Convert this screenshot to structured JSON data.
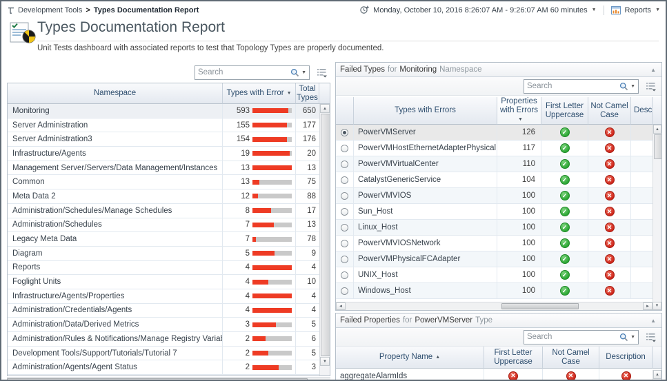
{
  "colors": {
    "bar_red": "#ee3b24",
    "bar_track": "#c9c9c9",
    "pass_green": "#2ea836",
    "fail_red": "#cf281c",
    "header_text": "#2f4f6f"
  },
  "icons": {
    "sort_desc": "▼",
    "sort_asc": "▲",
    "collapse": "▲",
    "dropdown": "▼",
    "pass": "✓",
    "fail": "✕",
    "scroll_up": "▲",
    "scroll_down": "▼",
    "scroll_left": "◄",
    "scroll_right": "►"
  },
  "topbar": {
    "breadcrumb": {
      "parent": "Development Tools",
      "separator": ">",
      "current": "Types Documentation Report"
    },
    "time_range": "Monday, October 10, 2016 8:26:07 AM - 9:26:07 AM 60 minutes",
    "reports_label": "Reports"
  },
  "header": {
    "title": "Types Documentation Report",
    "subtitle": "Unit Tests dashboard with associated reports to test that Topology Types are properly documented."
  },
  "namespace_table": {
    "search_placeholder": "Search",
    "columns": [
      "Namespace",
      "Types with Error",
      "Total Types"
    ],
    "sort": {
      "column": "Types with Error",
      "direction": "desc"
    },
    "rows": [
      {
        "namespace": "Monitoring",
        "errors": 593,
        "total": 650
      },
      {
        "namespace": "Server Administration",
        "errors": 155,
        "total": 177
      },
      {
        "namespace": "Server Administration3",
        "errors": 154,
        "total": 176
      },
      {
        "namespace": "Infrastructure/Agents",
        "errors": 19,
        "total": 20
      },
      {
        "namespace": "Management Server/Servers/Data Management/Instances",
        "errors": 13,
        "total": 13
      },
      {
        "namespace": "Common",
        "errors": 13,
        "total": 75
      },
      {
        "namespace": "Meta Data 2",
        "errors": 12,
        "total": 88
      },
      {
        "namespace": "Administration/Schedules/Manage Schedules",
        "errors": 8,
        "total": 17
      },
      {
        "namespace": "Administration/Schedules",
        "errors": 7,
        "total": 13
      },
      {
        "namespace": "Legacy Meta Data",
        "errors": 7,
        "total": 78
      },
      {
        "namespace": "Diagram",
        "errors": 5,
        "total": 9
      },
      {
        "namespace": "Reports",
        "errors": 4,
        "total": 4
      },
      {
        "namespace": "Foglight Units",
        "errors": 4,
        "total": 10
      },
      {
        "namespace": "Infrastructure/Agents/Properties",
        "errors": 4,
        "total": 4
      },
      {
        "namespace": "Administration/Credentials/Agents",
        "errors": 4,
        "total": 4
      },
      {
        "namespace": "Administration/Data/Derived Metrics",
        "errors": 3,
        "total": 5
      },
      {
        "namespace": "Administration/Rules & Notifications/Manage Registry Variables",
        "errors": 2,
        "total": 6
      },
      {
        "namespace": "Development Tools/Support/Tutorials/Tutorial 7",
        "errors": 2,
        "total": 5
      },
      {
        "namespace": "Administration/Agents/Agent Status",
        "errors": 2,
        "total": 3
      }
    ]
  },
  "failed_types_panel": {
    "title": {
      "prefix": "Failed Types",
      "for": "for",
      "value": "Monitoring",
      "suffix": "Namespace"
    },
    "search_placeholder": "Search",
    "columns": [
      "Types with Errors",
      "Properties with Errors",
      "First Letter Uppercase",
      "Not Camel Case",
      "Description"
    ],
    "sort": {
      "column": "Properties with Errors",
      "direction": "desc"
    },
    "rows": [
      {
        "type": "PowerVMServer",
        "properties_with_errors": 126,
        "first_letter_uppercase": "pass",
        "not_camel_case": "fail",
        "selected": true
      },
      {
        "type": "PowerVMHostEthernetAdapterPhysicalPort",
        "properties_with_errors": 117,
        "first_letter_uppercase": "pass",
        "not_camel_case": "fail",
        "selected": false
      },
      {
        "type": "PowerVMVirtualCenter",
        "properties_with_errors": 110,
        "first_letter_uppercase": "pass",
        "not_camel_case": "fail",
        "selected": false
      },
      {
        "type": "CatalystGenericService",
        "properties_with_errors": 104,
        "first_letter_uppercase": "pass",
        "not_camel_case": "fail",
        "selected": false
      },
      {
        "type": "PowerVMVIOS",
        "properties_with_errors": 100,
        "first_letter_uppercase": "pass",
        "not_camel_case": "fail",
        "selected": false
      },
      {
        "type": "Sun_Host",
        "properties_with_errors": 100,
        "first_letter_uppercase": "pass",
        "not_camel_case": "fail",
        "selected": false
      },
      {
        "type": "Linux_Host",
        "properties_with_errors": 100,
        "first_letter_uppercase": "pass",
        "not_camel_case": "fail",
        "selected": false
      },
      {
        "type": "PowerVMVIOSNetwork",
        "properties_with_errors": 100,
        "first_letter_uppercase": "pass",
        "not_camel_case": "fail",
        "selected": false
      },
      {
        "type": "PowerVMPhysicalFCAdapter",
        "properties_with_errors": 100,
        "first_letter_uppercase": "pass",
        "not_camel_case": "fail",
        "selected": false
      },
      {
        "type": "UNIX_Host",
        "properties_with_errors": 100,
        "first_letter_uppercase": "pass",
        "not_camel_case": "fail",
        "selected": false
      },
      {
        "type": "Windows_Host",
        "properties_with_errors": 100,
        "first_letter_uppercase": "pass",
        "not_camel_case": "fail",
        "selected": false
      }
    ]
  },
  "failed_properties_panel": {
    "title": {
      "prefix": "Failed Properties",
      "for": "for",
      "value": "PowerVMServer",
      "suffix": "Type"
    },
    "search_placeholder": "Search",
    "columns": [
      "Property Name",
      "First Letter Uppercase",
      "Not Camel Case",
      "Description"
    ],
    "sort": {
      "column": "Property Name",
      "direction": "asc"
    },
    "rows": [
      {
        "property": "aggregateAlarmIds",
        "first_letter_uppercase": "fail",
        "not_camel_case": "fail",
        "description": "fail"
      }
    ]
  }
}
